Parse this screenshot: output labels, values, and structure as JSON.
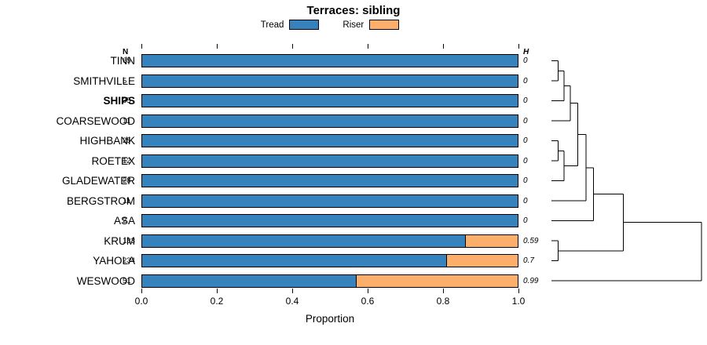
{
  "chart_data": {
    "type": "bar",
    "variant": "horizontal-stacked-proportion-with-dendrogram",
    "title": "Terraces: sibling",
    "xlabel": "Proportion",
    "xlim": [
      0,
      1
    ],
    "grid": false,
    "legend_position": "top",
    "legend": [
      {
        "label": "Tread",
        "color": "#3582bd"
      },
      {
        "label": "Riser",
        "color": "#fcae6b"
      }
    ],
    "col_headers": {
      "n": "N",
      "h": "H"
    },
    "x_ticks": [
      {
        "label": "0.0",
        "value": 0.0
      },
      {
        "label": "0.2",
        "value": 0.2
      },
      {
        "label": "0.4",
        "value": 0.4
      },
      {
        "label": "0.6",
        "value": 0.6
      },
      {
        "label": "0.8",
        "value": 0.8
      },
      {
        "label": "1.0",
        "value": 1.0
      }
    ],
    "rows": [
      {
        "label": "TINN",
        "n": 65,
        "tread": 1.0,
        "riser": 0.0,
        "h": "0",
        "bold": false
      },
      {
        "label": "SMITHVILLE",
        "n": 5,
        "tread": 1.0,
        "riser": 0.0,
        "h": "0",
        "bold": false
      },
      {
        "label": "SHIPS",
        "n": 35,
        "tread": 1.0,
        "riser": 0.0,
        "h": "0",
        "bold": true
      },
      {
        "label": "COARSEWOOD",
        "n": 11,
        "tread": 1.0,
        "riser": 0.0,
        "h": "0",
        "bold": false
      },
      {
        "label": "HIGHBANK",
        "n": 25,
        "tread": 1.0,
        "riser": 0.0,
        "h": "0",
        "bold": false
      },
      {
        "label": "ROETEX",
        "n": 12,
        "tread": 1.0,
        "riser": 0.0,
        "h": "0",
        "bold": false
      },
      {
        "label": "GLADEWATER",
        "n": 28,
        "tread": 1.0,
        "riser": 0.0,
        "h": "0",
        "bold": false
      },
      {
        "label": "BERGSTROM",
        "n": 11,
        "tread": 1.0,
        "riser": 0.0,
        "h": "0",
        "bold": false
      },
      {
        "label": "ASA",
        "n": 2,
        "tread": 1.0,
        "riser": 0.0,
        "h": "0",
        "bold": false
      },
      {
        "label": "KRUM",
        "n": 133,
        "tread": 0.86,
        "riser": 0.14,
        "h": "0.59",
        "bold": false
      },
      {
        "label": "YAHOLA",
        "n": 234,
        "tread": 0.81,
        "riser": 0.19,
        "h": "0.7",
        "bold": false
      },
      {
        "label": "WESWOOD",
        "n": 51,
        "tread": 0.57,
        "riser": 0.43,
        "h": "0.99",
        "bold": false
      }
    ],
    "dendrogram": {
      "h": 1.0,
      "children": [
        {
          "h": 0.48,
          "children": [
            {
              "h": 0.28,
              "children": [
                {
                  "h": 0.23,
                  "children": [
                    {
                      "h": 0.175,
                      "children": [
                        {
                          "h": 0.125,
                          "children": [
                            {
                              "h": 0.085,
                              "children": [
                                {
                                  "h": 0.045,
                                  "children": [
                                    {
                                      "leaf": "TINN"
                                    },
                                    {
                                      "leaf": "SMITHVILLE"
                                    }
                                  ]
                                },
                                {
                                  "leaf": "SHIPS"
                                }
                              ]
                            },
                            {
                              "leaf": "COARSEWOOD"
                            }
                          ]
                        },
                        {
                          "h": 0.085,
                          "children": [
                            {
                              "h": 0.045,
                              "children": [
                                {
                                  "leaf": "HIGHBANK"
                                },
                                {
                                  "leaf": "ROETEX"
                                }
                              ]
                            },
                            {
                              "leaf": "GLADEWATER"
                            }
                          ]
                        }
                      ]
                    },
                    {
                      "leaf": "BERGSTROM"
                    }
                  ]
                },
                {
                  "leaf": "ASA"
                }
              ]
            },
            {
              "h": 0.045,
              "children": [
                {
                  "leaf": "KRUM"
                },
                {
                  "leaf": "YAHOLA"
                }
              ]
            }
          ]
        },
        {
          "leaf": "WESWOOD"
        }
      ]
    }
  }
}
